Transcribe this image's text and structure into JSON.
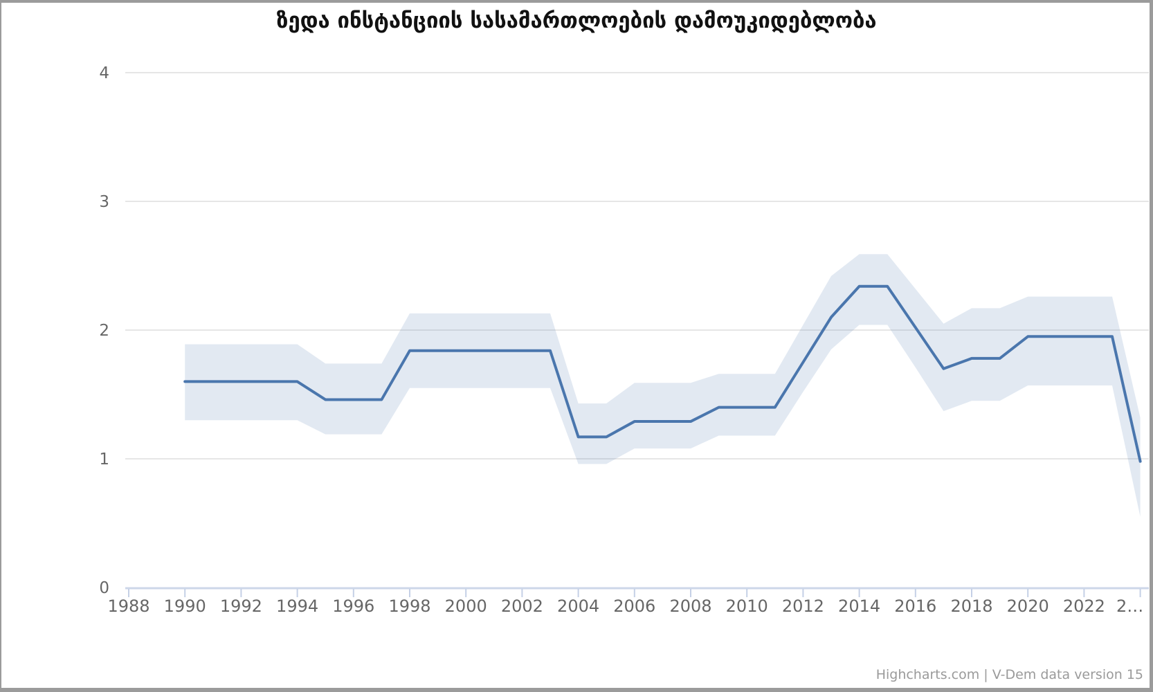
{
  "page": {
    "credits": "Highcharts.com | V-Dem data version 15"
  },
  "colors": {
    "line": "#4a76ad",
    "band_fill": "rgba(74,118,173,0.16)",
    "grid": "#e6e6e6",
    "axis": "#cdd7e9",
    "tick": "#c5d0e6",
    "axis_label": "#666666",
    "credits_text": "#9a9a9a",
    "title_text": "#111111",
    "frame_border": "#9b9b9b"
  },
  "chart_data": {
    "type": "line",
    "title": "ზედა ინსტანციის სასამართლოების დამოუკიდებლობა",
    "xlabel": "",
    "ylabel": "",
    "xlim": [
      1988,
      2024
    ],
    "ylim": [
      0,
      4
    ],
    "grid": "horizontal",
    "legend": false,
    "x": [
      1990,
      1991,
      1992,
      1993,
      1994,
      1995,
      1996,
      1997,
      1998,
      1999,
      2000,
      2001,
      2002,
      2003,
      2004,
      2005,
      2006,
      2007,
      2008,
      2009,
      2010,
      2011,
      2012,
      2013,
      2014,
      2015,
      2016,
      2017,
      2018,
      2019,
      2020,
      2021,
      2022,
      2023,
      2024
    ],
    "series": [
      {
        "name": "estimate",
        "role": "point-estimate-line",
        "values": [
          1.6,
          1.6,
          1.6,
          1.6,
          1.6,
          1.46,
          1.46,
          1.46,
          1.84,
          1.84,
          1.84,
          1.84,
          1.84,
          1.84,
          1.17,
          1.17,
          1.29,
          1.29,
          1.29,
          1.4,
          1.4,
          1.4,
          1.75,
          2.1,
          2.34,
          2.34,
          2.02,
          1.7,
          1.78,
          1.78,
          1.95,
          1.95,
          1.95,
          1.95,
          0.98
        ]
      },
      {
        "name": "lower bound",
        "role": "confidence-band-low",
        "values": [
          1.3,
          1.3,
          1.3,
          1.3,
          1.3,
          1.19,
          1.19,
          1.19,
          1.55,
          1.55,
          1.55,
          1.55,
          1.55,
          1.55,
          0.96,
          0.96,
          1.08,
          1.08,
          1.08,
          1.18,
          1.18,
          1.18,
          1.52,
          1.85,
          2.04,
          2.04,
          1.71,
          1.37,
          1.45,
          1.45,
          1.57,
          1.57,
          1.57,
          1.57,
          0.55
        ]
      },
      {
        "name": "upper bound",
        "role": "confidence-band-high",
        "values": [
          1.89,
          1.89,
          1.89,
          1.89,
          1.89,
          1.74,
          1.74,
          1.74,
          2.13,
          2.13,
          2.13,
          2.13,
          2.13,
          2.13,
          1.43,
          1.43,
          1.59,
          1.59,
          1.59,
          1.66,
          1.66,
          1.66,
          2.04,
          2.42,
          2.59,
          2.59,
          2.32,
          2.05,
          2.17,
          2.17,
          2.26,
          2.26,
          2.26,
          2.26,
          1.32
        ]
      }
    ],
    "yticks": [
      0,
      1,
      2,
      3,
      4
    ],
    "xticks": [
      1988,
      1990,
      1992,
      1994,
      1996,
      1998,
      2000,
      2002,
      2004,
      2006,
      2008,
      2010,
      2012,
      2014,
      2016,
      2018,
      2020,
      2022,
      2024
    ],
    "xtick_labels": [
      "1988",
      "1990",
      "1992",
      "1994",
      "1996",
      "1998",
      "2000",
      "2002",
      "2004",
      "2006",
      "2008",
      "2010",
      "2012",
      "2014",
      "2016",
      "2018",
      "2020",
      "2022",
      "2…"
    ]
  }
}
